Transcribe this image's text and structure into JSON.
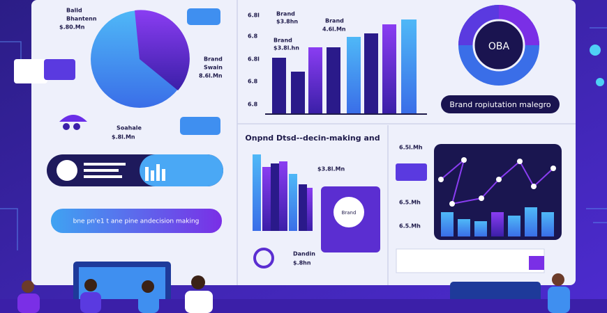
{
  "labels": {
    "tl_1": "Balld",
    "tl_2": "Bhantenn",
    "tl_3": "$.80.Mn",
    "pr_1": "Brand",
    "pr_2": "Swain",
    "pr_3": "8.6l.Mn",
    "pb_1": "Soahale",
    "pb_2": "$.8l.Mn",
    "ax_1": "6.8l",
    "ax_2": "6.8",
    "ax_3": "6.8l",
    "ax_4": "6.8",
    "ax_5": "6.8",
    "bc_1": "Brand",
    "bc_2": "$3.8hn",
    "bc_3": "Brand",
    "bc_4": "4.6l.Mn",
    "bc_5": "Brand",
    "bc_6": "$3.8l.hn",
    "donut": "OBA",
    "brand_pill": "Brand ropiutation malegro",
    "mid_title": "Onpnd Dtsd--decin-making and",
    "mid_value": "$3.8l.Mn",
    "card": "Brand",
    "bottom_1": "Dandin",
    "bottom_2": "$.8hn",
    "right_1": "6.5l.Mh",
    "right_2": "6.5.Mh",
    "right_3": "6.5.Mh",
    "button": "bne pn'e1 t ane pine andecision making"
  }
}
